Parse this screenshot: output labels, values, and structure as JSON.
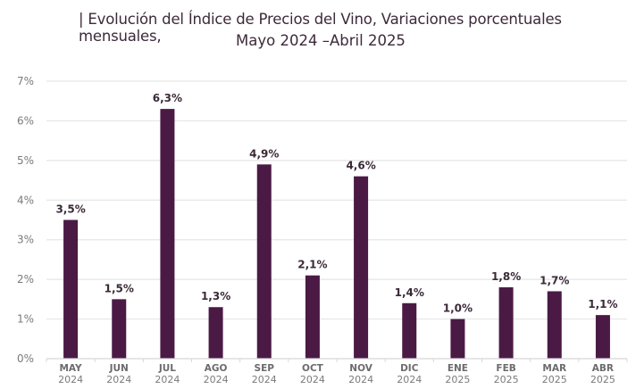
{
  "title_line1": "| Evolución del Índice de Precios del Vino, Variaciones porcentuales mensuales,",
  "title_line2": "Mayo 2024 –Abril 2025",
  "chart_data": {
    "type": "bar",
    "title": "Evolución del Índice de Precios del Vino, Variaciones porcentuales mensuales, Mayo 2024 –Abril 2025",
    "categories": [
      "MAY 2024",
      "JUN 2024",
      "JUL 2024",
      "AGO 2024",
      "SEP 2024",
      "OCT 2024",
      "NOV 2024",
      "DIC 2024",
      "ENE 2025",
      "FEB 2025",
      "MAR 2025",
      "ABR 2025"
    ],
    "months": [
      "MAY",
      "JUN",
      "JUL",
      "AGO",
      "SEP",
      "OCT",
      "NOV",
      "DIC",
      "ENE",
      "FEB",
      "MAR",
      "ABR"
    ],
    "years": [
      "2024",
      "2024",
      "2024",
      "2024",
      "2024",
      "2024",
      "2024",
      "2024",
      "2025",
      "2025",
      "2025",
      "2025"
    ],
    "values": [
      3.5,
      1.5,
      6.3,
      1.3,
      4.9,
      2.1,
      4.6,
      1.4,
      1.0,
      1.8,
      1.7,
      1.1
    ],
    "value_labels": [
      "3,5%",
      "1,5%",
      "6,3%",
      "1,3%",
      "4,9%",
      "2,1%",
      "4,6%",
      "1,4%",
      "1,0%",
      "1,8%",
      "1,7%",
      "1,1%"
    ],
    "yticks": [
      0,
      1,
      2,
      3,
      4,
      5,
      6,
      7
    ],
    "ytick_labels": [
      "0%",
      "1%",
      "2%",
      "3%",
      "4%",
      "5%",
      "6%",
      "7%"
    ],
    "ylim": [
      0,
      7
    ],
    "xlabel": "",
    "ylabel": "",
    "grid": true,
    "legend": "none",
    "bar_color": "#4a1a45",
    "grid_color": "#e6e6e6"
  }
}
